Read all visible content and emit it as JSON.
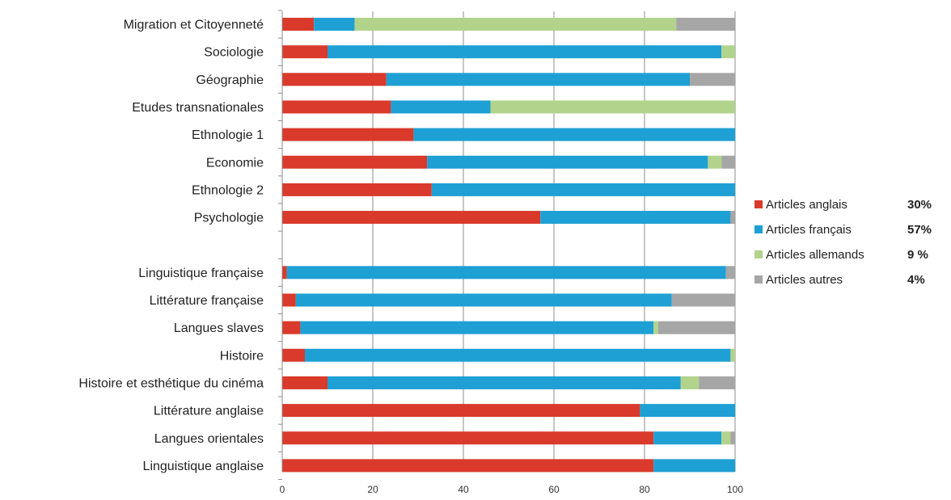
{
  "chart_data": {
    "type": "bar",
    "orientation": "horizontal",
    "stacked": true,
    "title": "",
    "xlabel": "",
    "ylabel": "",
    "xlim": [
      0,
      100
    ],
    "x_ticks": [
      "0",
      "20",
      "40",
      "60",
      "80",
      "100"
    ],
    "grid": true,
    "legend_position": "right",
    "categories": [
      "Migration et Citoyenneté",
      "Sociologie",
      "Géographie",
      "Etudes transnationales",
      "Ethnologie 1",
      "Economie",
      "Ethnologie 2",
      "Psychologie",
      "",
      "Linguistique française",
      "Littérature française",
      "Langues slaves",
      "Histoire",
      "Histoire et esthétique du cinéma",
      "Littérature anglaise",
      "Langues orientales",
      "Linguistique anglaise"
    ],
    "series": [
      {
        "name": "Articles anglais",
        "percent_label": "30%",
        "color": "#d93a2b",
        "values": [
          7,
          10,
          23,
          24,
          29,
          32,
          33,
          57,
          null,
          1,
          3,
          4,
          5,
          10,
          79,
          82,
          82
        ]
      },
      {
        "name": "Articles français",
        "percent_label": "57%",
        "color": "#1ea0d4",
        "values": [
          9,
          87,
          67,
          22,
          71,
          62,
          67,
          42,
          null,
          97,
          83,
          78,
          94,
          78,
          21,
          15,
          18
        ]
      },
      {
        "name": "Articles allemands",
        "percent_label": "9 %",
        "color": "#b2d38c",
        "values": [
          71,
          3,
          0,
          54,
          0,
          3,
          0,
          0,
          null,
          0,
          0,
          1,
          1,
          4,
          0,
          2,
          0
        ]
      },
      {
        "name": "Articles autres",
        "percent_label": "4%",
        "color": "#a6a6a6",
        "values": [
          13,
          0,
          10,
          0,
          0,
          3,
          0,
          1,
          null,
          2,
          14,
          17,
          0,
          8,
          0,
          1,
          0
        ]
      }
    ]
  }
}
